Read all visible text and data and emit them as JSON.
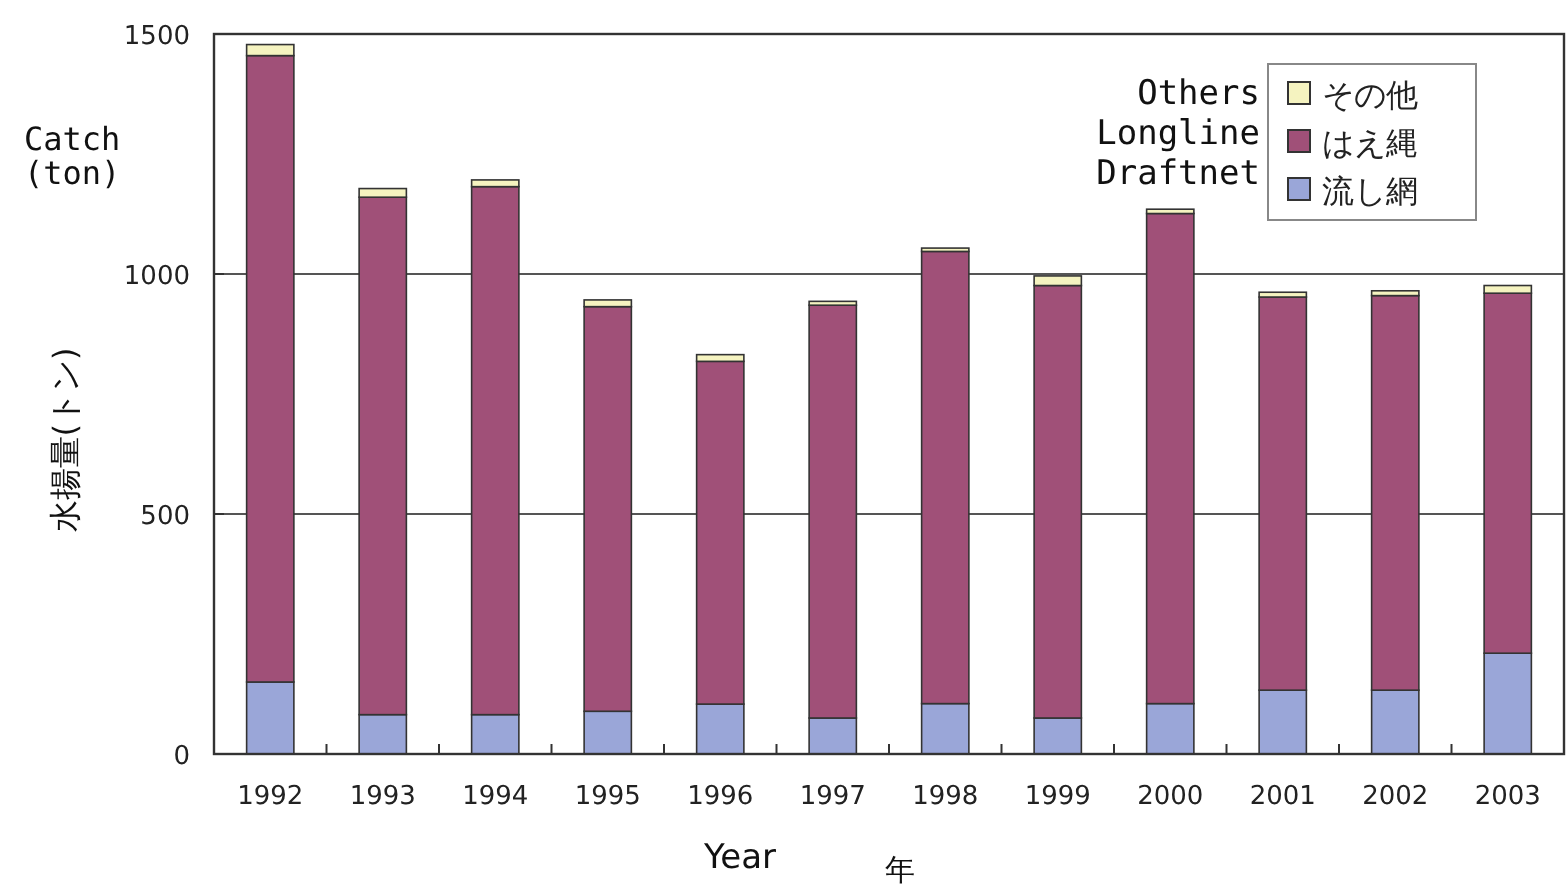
{
  "chart_data": {
    "type": "bar",
    "stacked": true,
    "categories": [
      "1992",
      "1993",
      "1994",
      "1995",
      "1996",
      "1997",
      "1998",
      "1999",
      "2000",
      "2001",
      "2002",
      "2003"
    ],
    "series": [
      {
        "name": "流し網",
        "color": "#9aa6d8",
        "values": [
          150,
          82,
          82,
          89,
          104,
          75,
          105,
          75,
          105,
          133,
          133,
          210
        ]
      },
      {
        "name": "はえ縄",
        "color": "#a05078",
        "values": [
          1305,
          1078,
          1100,
          843,
          714,
          860,
          942,
          901,
          1021,
          819,
          822,
          750
        ]
      },
      {
        "name": "その他",
        "color": "#f5f3c0",
        "values": [
          23,
          18,
          14,
          14,
          14,
          8,
          7,
          20,
          9,
          10,
          10,
          16
        ]
      }
    ],
    "xlabel": "Year",
    "ylabel": "水揚量(トン)",
    "annotations": [
      "Others",
      "Longline",
      "Draftnet",
      "Catch\n(ton)",
      "年"
    ],
    "ylim": [
      0,
      1500
    ],
    "yticks": [
      0,
      500,
      1000,
      1500
    ],
    "grid": "y",
    "legend": "top right"
  }
}
